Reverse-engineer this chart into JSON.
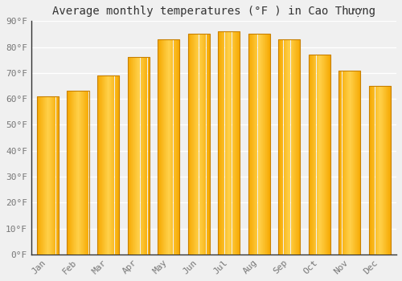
{
  "title": "Average monthly temperatures (°F ) in Cao Thượng",
  "months": [
    "Jan",
    "Feb",
    "Mar",
    "Apr",
    "May",
    "Jun",
    "Jul",
    "Aug",
    "Sep",
    "Oct",
    "Nov",
    "Dec"
  ],
  "values": [
    61,
    63,
    69,
    76,
    83,
    85,
    86,
    85,
    83,
    77,
    71,
    65
  ],
  "bar_color_center": "#FFD04A",
  "bar_color_edge": "#F5A800",
  "ylim": [
    0,
    90
  ],
  "yticks": [
    0,
    10,
    20,
    30,
    40,
    50,
    60,
    70,
    80,
    90
  ],
  "ytick_labels": [
    "0°F",
    "10°F",
    "20°F",
    "30°F",
    "40°F",
    "50°F",
    "60°F",
    "70°F",
    "80°F",
    "90°F"
  ],
  "background_color": "#f0f0f0",
  "grid_color": "#ffffff",
  "title_fontsize": 10,
  "tick_fontsize": 8,
  "bar_width": 0.72
}
